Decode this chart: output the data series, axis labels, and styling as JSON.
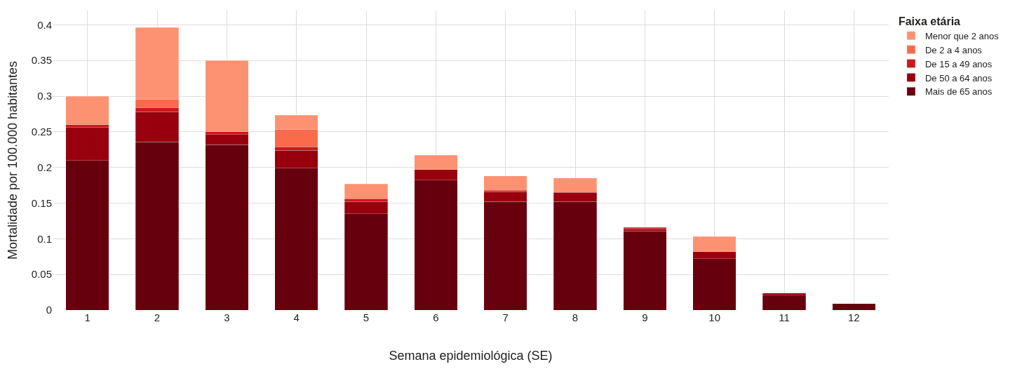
{
  "chart_data": {
    "type": "bar",
    "stacked": true,
    "xlabel": "Semana epidemiológica (SE)",
    "ylabel": "Mortalidade por 100.000 habitantes",
    "legend_title": "Faixa etária",
    "categories": [
      "1",
      "2",
      "3",
      "4",
      "5",
      "6",
      "7",
      "8",
      "9",
      "10",
      "11",
      "12"
    ],
    "series": [
      {
        "name": "Mais de 65 anos",
        "color": "#67000d",
        "values": [
          0.21,
          0.236,
          0.232,
          0.199,
          0.135,
          0.182,
          0.152,
          0.152,
          0.111,
          0.072,
          0.021,
          0.009
        ]
      },
      {
        "name": "De 50 a 64 anos",
        "color": "#99000d",
        "values": [
          0.046,
          0.042,
          0.014,
          0.025,
          0.017,
          0.015,
          0.014,
          0.013,
          0.003,
          0.01,
          0.003,
          null
        ]
      },
      {
        "name": "De 15 a 49 anos",
        "color": "#cb181d",
        "values": [
          0.004,
          0.006,
          0.004,
          0.005,
          0.004,
          null,
          0.002,
          null,
          0.002,
          null,
          null,
          null
        ]
      },
      {
        "name": "De 2 a 4 anos",
        "color": "#fb6a4a",
        "values": [
          null,
          0.012,
          null,
          0.024,
          null,
          null,
          null,
          null,
          null,
          null,
          null,
          null
        ]
      },
      {
        "name": "Menor que 2 anos",
        "color": "#fc9272",
        "values": [
          0.04,
          0.1,
          0.1,
          0.02,
          0.021,
          0.02,
          0.02,
          0.02,
          null,
          0.021,
          null,
          null
        ]
      }
    ],
    "ylim": [
      0,
      0.42
    ],
    "yticks": [
      0,
      0.05,
      0.1,
      0.15,
      0.2,
      0.25,
      0.3,
      0.35,
      0.4
    ],
    "grid": true,
    "legend": "top right"
  }
}
